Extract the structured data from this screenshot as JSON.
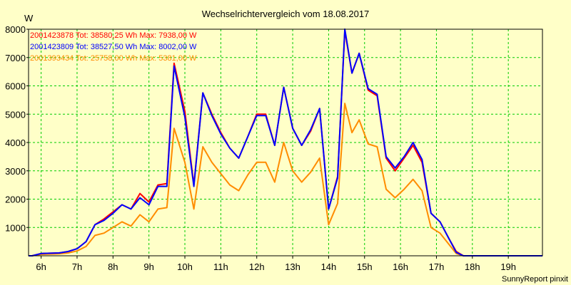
{
  "chart_data": {
    "type": "line",
    "title": "Wechselrichtervergleich vom 18.08.2017",
    "ylabel": "W",
    "xlabel": "",
    "ylim": [
      0,
      8000
    ],
    "xlim": [
      5.65,
      19.95
    ],
    "yticks": [
      1000,
      2000,
      3000,
      4000,
      5000,
      6000,
      7000,
      8000
    ],
    "yticklabels": [
      "1000",
      "2000",
      "3000",
      "4000",
      "5000",
      "6000",
      "7000",
      "8000"
    ],
    "xticks": [
      6,
      7,
      8,
      9,
      10,
      11,
      12,
      13,
      14,
      15,
      16,
      17,
      18,
      19
    ],
    "xticklabels": [
      "6h",
      "7h",
      "8h",
      "9h",
      "10h",
      "11h",
      "12h",
      "13h",
      "14h",
      "15h",
      "16h",
      "17h",
      "18h",
      "19h"
    ],
    "grid": true,
    "x": [
      5.65,
      5.75,
      6.0,
      6.25,
      6.5,
      6.75,
      7.0,
      7.25,
      7.5,
      7.75,
      8.0,
      8.25,
      8.5,
      8.75,
      9.0,
      9.25,
      9.5,
      9.7,
      10.0,
      10.25,
      10.5,
      10.75,
      11.0,
      11.25,
      11.5,
      11.75,
      12.0,
      12.25,
      12.5,
      12.75,
      13.0,
      13.25,
      13.5,
      13.75,
      14.0,
      14.25,
      14.45,
      14.65,
      14.85,
      15.1,
      15.35,
      15.6,
      15.85,
      16.1,
      16.35,
      16.6,
      16.85,
      17.1,
      17.35,
      17.55,
      17.75,
      18.0,
      18.25,
      19.95
    ],
    "series": [
      {
        "name": "2001423878",
        "legend": "2001423878 Tot: 38580,25 Wh Max: 7938,00 W",
        "color": "#ff0000",
        "values": [
          0,
          0,
          80,
          90,
          100,
          150,
          250,
          500,
          1100,
          1300,
          1550,
          1800,
          1650,
          2200,
          1900,
          2500,
          2550,
          6800,
          5100,
          2500,
          5750,
          5000,
          4350,
          3800,
          3450,
          4200,
          5000,
          5000,
          3900,
          5950,
          4500,
          3900,
          4400,
          5200,
          1650,
          2800,
          7938,
          6450,
          7150,
          5850,
          5650,
          3450,
          3000,
          3450,
          3900,
          3300,
          1500,
          1200,
          600,
          150,
          0,
          0,
          0,
          0
        ]
      },
      {
        "name": "2001423809",
        "legend": "2001423809 Tot: 38527,50 Wh Max: 8002,00 W",
        "color": "#0000ff",
        "values": [
          0,
          0,
          80,
          90,
          100,
          150,
          250,
          500,
          1100,
          1250,
          1500,
          1800,
          1650,
          2050,
          1800,
          2450,
          2450,
          6700,
          4900,
          2450,
          5750,
          4950,
          4300,
          3800,
          3450,
          4200,
          4950,
          4950,
          3900,
          5950,
          4500,
          3900,
          4450,
          5200,
          1650,
          2750,
          8002,
          6450,
          7150,
          5900,
          5700,
          3500,
          3100,
          3500,
          4000,
          3400,
          1500,
          1200,
          600,
          120,
          0,
          0,
          0,
          0
        ]
      },
      {
        "name": "2001393434",
        "legend": "2001393434 Tot: 25758,00 Wh Max: 5381,00 W",
        "color": "#ff8c00",
        "values": [
          0,
          0,
          50,
          60,
          70,
          100,
          170,
          330,
          720,
          800,
          1000,
          1200,
          1050,
          1450,
          1200,
          1650,
          1700,
          4500,
          3300,
          1650,
          3850,
          3300,
          2900,
          2500,
          2300,
          2850,
          3300,
          3300,
          2600,
          4000,
          3000,
          2600,
          2950,
          3450,
          1100,
          1850,
          5381,
          4350,
          4800,
          3950,
          3850,
          2350,
          2050,
          2350,
          2700,
          2300,
          1000,
          800,
          400,
          80,
          0,
          0,
          0,
          0
        ]
      }
    ],
    "footer": "SunnyReport pinxit"
  }
}
